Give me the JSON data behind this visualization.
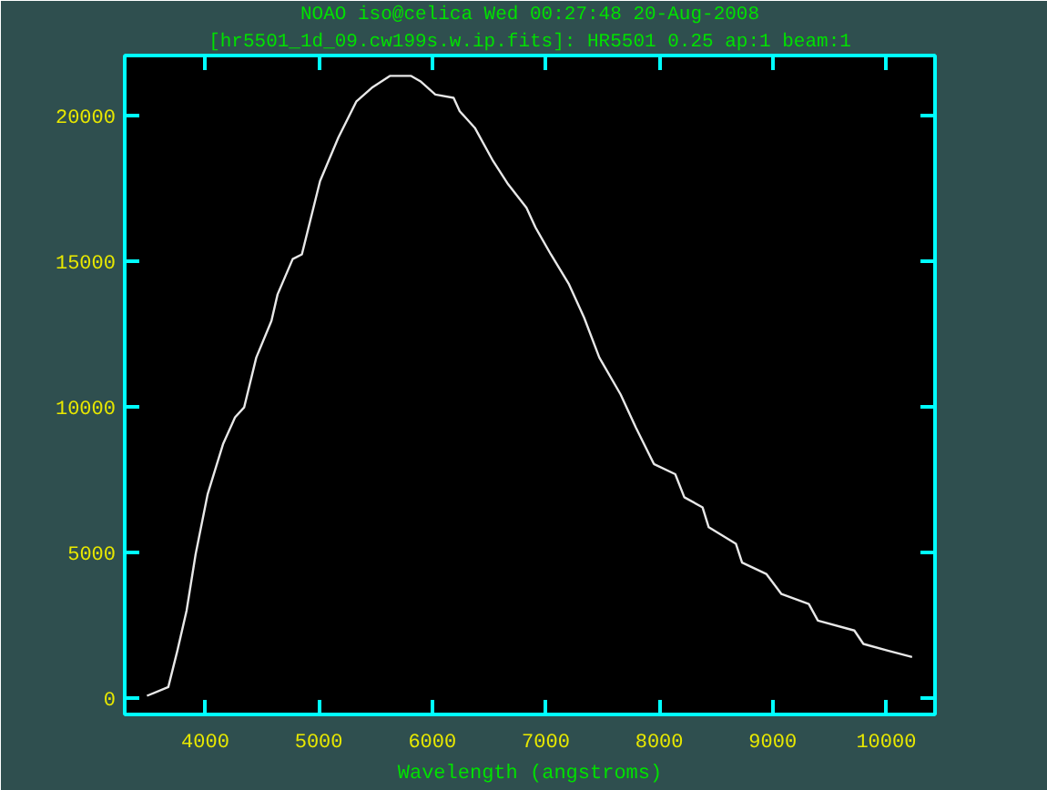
{
  "chart_data": {
    "type": "line",
    "title": "NOAO iso@celica Wed 00:27:48 20-Aug-2008",
    "subtitle": "[hr5501_1d_09.cw199s.w.ip.fits]: HR5501 0.25 ap:1 beam:1",
    "xlabel": "Wavelength (angstroms)",
    "xlim": [
      3290,
      10430
    ],
    "ylim": [
      -550,
      22050
    ],
    "xticks": [
      4000,
      5000,
      6000,
      7000,
      8000,
      9000,
      10000
    ],
    "yticks": [
      0,
      5000,
      10000,
      15000,
      20000
    ],
    "grid": false,
    "marker": "none",
    "line_style": "solid",
    "series": [
      {
        "color": "#e8e8e8",
        "x": [
          3486,
          3674,
          3754,
          3835,
          3915,
          4021,
          4156,
          4262,
          4342,
          4449,
          4583,
          4637,
          4770,
          4851,
          5011,
          5172,
          5332,
          5466,
          5626,
          5814,
          5894,
          6027,
          6188,
          6242,
          6375,
          6536,
          6669,
          6830,
          6910,
          7045,
          7205,
          7338,
          7472,
          7659,
          7793,
          7953,
          8141,
          8221,
          8382,
          8436,
          8676,
          8730,
          8943,
          9077,
          9318,
          9398,
          9719,
          9799,
          10014,
          10228
        ],
        "values": [
          90,
          390,
          1640,
          3010,
          4950,
          7010,
          8720,
          9640,
          9980,
          11690,
          12950,
          13860,
          15070,
          15230,
          17740,
          19230,
          20480,
          20940,
          21350,
          21350,
          21170,
          20710,
          20600,
          20140,
          19570,
          18430,
          17630,
          16830,
          16150,
          15230,
          14200,
          13060,
          11690,
          10430,
          9300,
          8040,
          7690,
          6900,
          6550,
          5870,
          5300,
          4660,
          4270,
          3580,
          3240,
          2670,
          2330,
          1870,
          1640,
          1420
        ]
      }
    ]
  }
}
